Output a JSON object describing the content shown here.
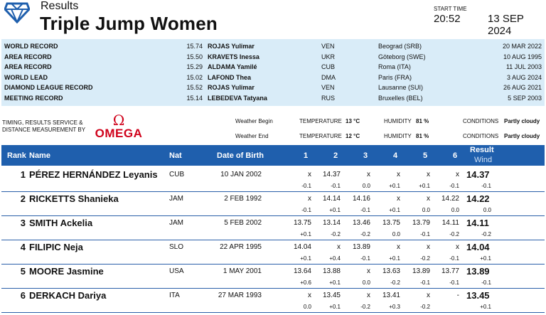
{
  "header": {
    "results_label": "Results",
    "title": "Triple Jump Women",
    "start_time_label": "START TIME",
    "start_time": "20:52",
    "date": "13 SEP 2024"
  },
  "records": [
    {
      "name": "WORLD RECORD",
      "mark": "15.74",
      "athlete": "ROJAS Yulimar",
      "nat": "VEN",
      "venue": "Beograd (SRB)",
      "date": "20 MAR 2022"
    },
    {
      "name": "AREA RECORD",
      "mark": "15.50",
      "athlete": "KRAVETS Inessa",
      "nat": "UKR",
      "venue": "Göteborg (SWE)",
      "date": "10 AUG 1995"
    },
    {
      "name": "AREA RECORD",
      "mark": "15.29",
      "athlete": "ALDAMA Yamilé",
      "nat": "CUB",
      "venue": "Roma (ITA)",
      "date": "11 JUL 2003"
    },
    {
      "name": "WORLD LEAD",
      "mark": "15.02",
      "athlete": "LAFOND Thea",
      "nat": "DMA",
      "venue": "Paris (FRA)",
      "date": "3 AUG 2024"
    },
    {
      "name": "DIAMOND LEAGUE RECORD",
      "mark": "15.52",
      "athlete": "ROJAS Yulimar",
      "nat": "VEN",
      "venue": "Lausanne (SUI)",
      "date": "26 AUG 2021"
    },
    {
      "name": "MEETING RECORD",
      "mark": "15.14",
      "athlete": "LEBEDEVA Tatyana",
      "nat": "RUS",
      "venue": "Bruxelles (BEL)",
      "date": "5 SEP 2003"
    }
  ],
  "timing": {
    "line1": "TIMING, RESULTS SERVICE &",
    "line2": "DISTANCE MEASUREMENT BY",
    "omega_symbol": "Ω",
    "omega_word": "OMEGA"
  },
  "weather": {
    "begin": {
      "label": "Weather Begin",
      "temp_label": "TEMPERATURE",
      "temp": "13 °C",
      "hum_label": "HUMIDITY",
      "hum": "81 %",
      "cond_label": "CONDITIONS",
      "cond": "Partly cloudy"
    },
    "end": {
      "label": "Weather End",
      "temp_label": "TEMPERATURE",
      "temp": "12 °C",
      "hum_label": "HUMIDITY",
      "hum": "81 %",
      "cond_label": "CONDITIONS",
      "cond": "Partly cloudy"
    }
  },
  "columns": {
    "rank": "Rank",
    "name": "Name",
    "nat": "Nat",
    "dob": "Date of Birth",
    "a1": "1",
    "a2": "2",
    "a3": "3",
    "a4": "4",
    "a5": "5",
    "a6": "6",
    "result": "Result",
    "wind": "Wind"
  },
  "athletes": [
    {
      "rank": "1",
      "name": "PÉREZ HERNÁNDEZ Leyanis",
      "nat": "CUB",
      "dob": "10 JAN 2002",
      "attempts": [
        "x",
        "14.37",
        "x",
        "x",
        "x",
        "x"
      ],
      "winds": [
        "-0.1",
        "-0.1",
        "0.0",
        "+0.1",
        "+0.1",
        "-0.1"
      ],
      "result": "14.37",
      "result_wind": "-0.1"
    },
    {
      "rank": "2",
      "name": "RICKETTS Shanieka",
      "nat": "JAM",
      "dob": "2 FEB 1992",
      "attempts": [
        "x",
        "14.14",
        "14.16",
        "x",
        "x",
        "14.22"
      ],
      "winds": [
        "-0.1",
        "+0.1",
        "-0.1",
        "+0.1",
        "0.0",
        "0.0"
      ],
      "result": "14.22",
      "result_wind": "0.0"
    },
    {
      "rank": "3",
      "name": "SMITH Ackelia",
      "nat": "JAM",
      "dob": "5 FEB 2002",
      "attempts": [
        "13.75",
        "13.14",
        "13.46",
        "13.75",
        "13.79",
        "14.11"
      ],
      "winds": [
        "+0.1",
        "-0.2",
        "-0.2",
        "0.0",
        "-0.1",
        "-0.2"
      ],
      "result": "14.11",
      "result_wind": "-0.2"
    },
    {
      "rank": "4",
      "name": "FILIPIC Neja",
      "nat": "SLO",
      "dob": "22 APR 1995",
      "attempts": [
        "14.04",
        "x",
        "13.89",
        "x",
        "x",
        "x"
      ],
      "winds": [
        "+0.1",
        "+0.4",
        "-0.1",
        "+0.1",
        "-0.2",
        "-0.1"
      ],
      "result": "14.04",
      "result_wind": "+0.1"
    },
    {
      "rank": "5",
      "name": "MOORE Jasmine",
      "nat": "USA",
      "dob": "1 MAY 2001",
      "attempts": [
        "13.64",
        "13.88",
        "x",
        "13.63",
        "13.89",
        "13.77"
      ],
      "winds": [
        "+0.6",
        "+0.1",
        "0.0",
        "-0.2",
        "-0.1",
        "-0.1"
      ],
      "result": "13.89",
      "result_wind": "-0.1"
    },
    {
      "rank": "6",
      "name": "DERKACH Dariya",
      "nat": "ITA",
      "dob": "27 MAR 1993",
      "attempts": [
        "x",
        "13.45",
        "x",
        "13.41",
        "x",
        "-"
      ],
      "winds": [
        "0.0",
        "+0.1",
        "-0.2",
        "+0.3",
        "-0.2",
        ""
      ],
      "result": "13.45",
      "result_wind": "+0.1"
    }
  ]
}
